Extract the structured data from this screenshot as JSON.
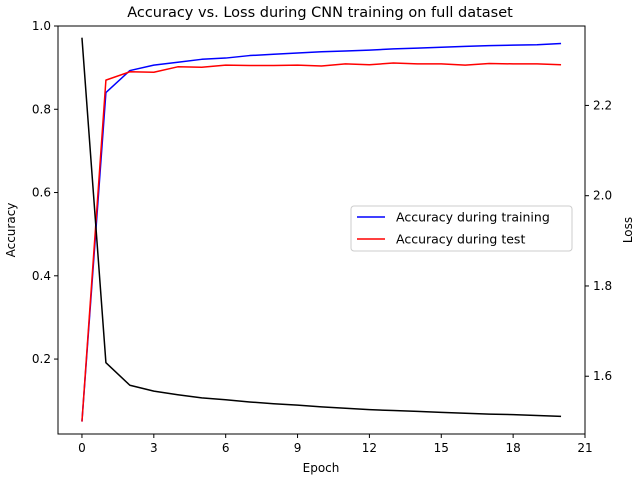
{
  "chart_data": {
    "type": "line",
    "title": "Accuracy vs. Loss during CNN training on full dataset",
    "xlabel": "Epoch",
    "ylabel": "Accuracy",
    "ylabel_right": "Loss",
    "xlim": [
      -1,
      21
    ],
    "ylim": [
      0.02,
      1.0
    ],
    "ylim_right": [
      1.472,
      2.376
    ],
    "xticks": [
      0,
      3,
      6,
      9,
      12,
      15,
      18,
      21
    ],
    "yticks": [
      0.2,
      0.4,
      0.6,
      0.8,
      1.0
    ],
    "yticks_right": [
      1.6,
      1.8,
      2.0,
      2.2
    ],
    "grid": false,
    "legend_position": "center-right",
    "x": [
      0,
      1,
      2,
      3,
      4,
      5,
      6,
      7,
      8,
      9,
      10,
      11,
      12,
      13,
      14,
      15,
      16,
      17,
      18,
      19,
      20
    ],
    "series": [
      {
        "name": "Accuracy during training",
        "axis": "left",
        "color": "#0000ff",
        "values": [
          0.05,
          0.84,
          0.893,
          0.906,
          0.913,
          0.92,
          0.923,
          0.929,
          0.932,
          0.935,
          0.938,
          0.94,
          0.942,
          0.945,
          0.947,
          0.949,
          0.951,
          0.953,
          0.954,
          0.955,
          0.958
        ]
      },
      {
        "name": "Accuracy during test",
        "axis": "left",
        "color": "#ff0000",
        "values": [
          0.05,
          0.87,
          0.89,
          0.889,
          0.902,
          0.901,
          0.906,
          0.905,
          0.905,
          0.906,
          0.904,
          0.909,
          0.907,
          0.911,
          0.909,
          0.909,
          0.906,
          0.91,
          0.909,
          0.909,
          0.907
        ]
      },
      {
        "name": "",
        "axis": "right",
        "color": "#000000",
        "values": [
          2.35,
          1.63,
          1.58,
          1.567,
          1.559,
          1.552,
          1.548,
          1.543,
          1.539,
          1.536,
          1.532,
          1.529,
          1.526,
          1.524,
          1.522,
          1.52,
          1.518,
          1.516,
          1.515,
          1.513,
          1.511
        ]
      }
    ]
  }
}
